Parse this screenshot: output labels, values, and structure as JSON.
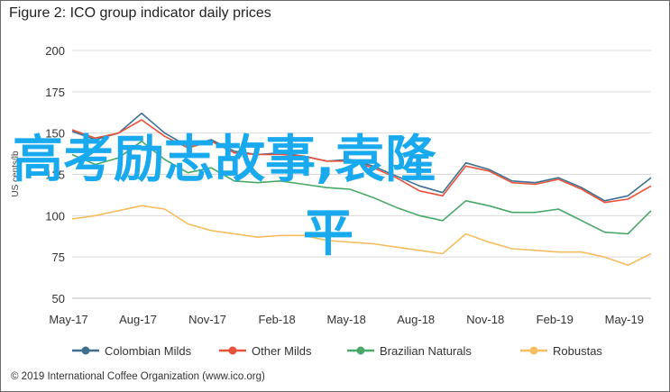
{
  "title": "Figure 2: ICO group indicator daily prices",
  "credit": "© 2019 International Coffee Organization (www.ico.org)",
  "watermark": {
    "line1": "高考励志故事,袁隆",
    "line2": "平",
    "color": "#18a9ee"
  },
  "chart_data": {
    "type": "line",
    "title": "Figure 2: ICO group indicator daily prices",
    "ylabel": "US cents/lb",
    "xlabel": "",
    "ylim": [
      50,
      200
    ],
    "yticks": [
      50,
      75,
      100,
      125,
      150,
      175,
      200
    ],
    "xlim": [
      "2017-05",
      "2019-06"
    ],
    "xticks": [
      "May-17",
      "Aug-17",
      "Nov-17",
      "Feb-18",
      "May-18",
      "Aug-18",
      "Nov-18",
      "Feb-19",
      "May-19"
    ],
    "grid": true,
    "legend_position": "bottom",
    "x": [
      "May-17",
      "Jun-17",
      "Jul-17",
      "Aug-17",
      "Sep-17",
      "Oct-17",
      "Nov-17",
      "Dec-17",
      "Jan-18",
      "Feb-18",
      "Mar-18",
      "Apr-18",
      "May-18",
      "Jun-18",
      "Jul-18",
      "Aug-18",
      "Sep-18",
      "Oct-18",
      "Nov-18",
      "Dec-18",
      "Jan-19",
      "Feb-19",
      "Mar-19",
      "Apr-19",
      "May-19",
      "Jun-19"
    ],
    "series": [
      {
        "name": "Colombian Milds",
        "color": "#3f6f8f",
        "values": [
          151,
          146,
          150,
          162,
          150,
          142,
          146,
          139,
          137,
          138,
          136,
          133,
          134,
          130,
          124,
          118,
          114,
          132,
          128,
          121,
          120,
          123,
          117,
          109,
          112,
          123
        ]
      },
      {
        "name": "Other Milds",
        "color": "#e8523a",
        "values": [
          152,
          147,
          150,
          158,
          148,
          141,
          145,
          138,
          137,
          137,
          136,
          133,
          133,
          129,
          123,
          115,
          112,
          130,
          127,
          120,
          119,
          122,
          116,
          108,
          110,
          118
        ]
      },
      {
        "name": "Brazilian Naturals",
        "color": "#48a868",
        "values": [
          137,
          131,
          135,
          145,
          134,
          126,
          129,
          121,
          120,
          121,
          119,
          117,
          116,
          111,
          105,
          100,
          97,
          109,
          106,
          102,
          102,
          104,
          97,
          90,
          89,
          103
        ]
      },
      {
        "name": "Robustas",
        "color": "#f5bd5d",
        "values": [
          98,
          100,
          103,
          106,
          104,
          95,
          91,
          89,
          87,
          88,
          88,
          85,
          84,
          83,
          81,
          79,
          77,
          89,
          84,
          80,
          79,
          78,
          78,
          75,
          70,
          77
        ]
      }
    ]
  }
}
